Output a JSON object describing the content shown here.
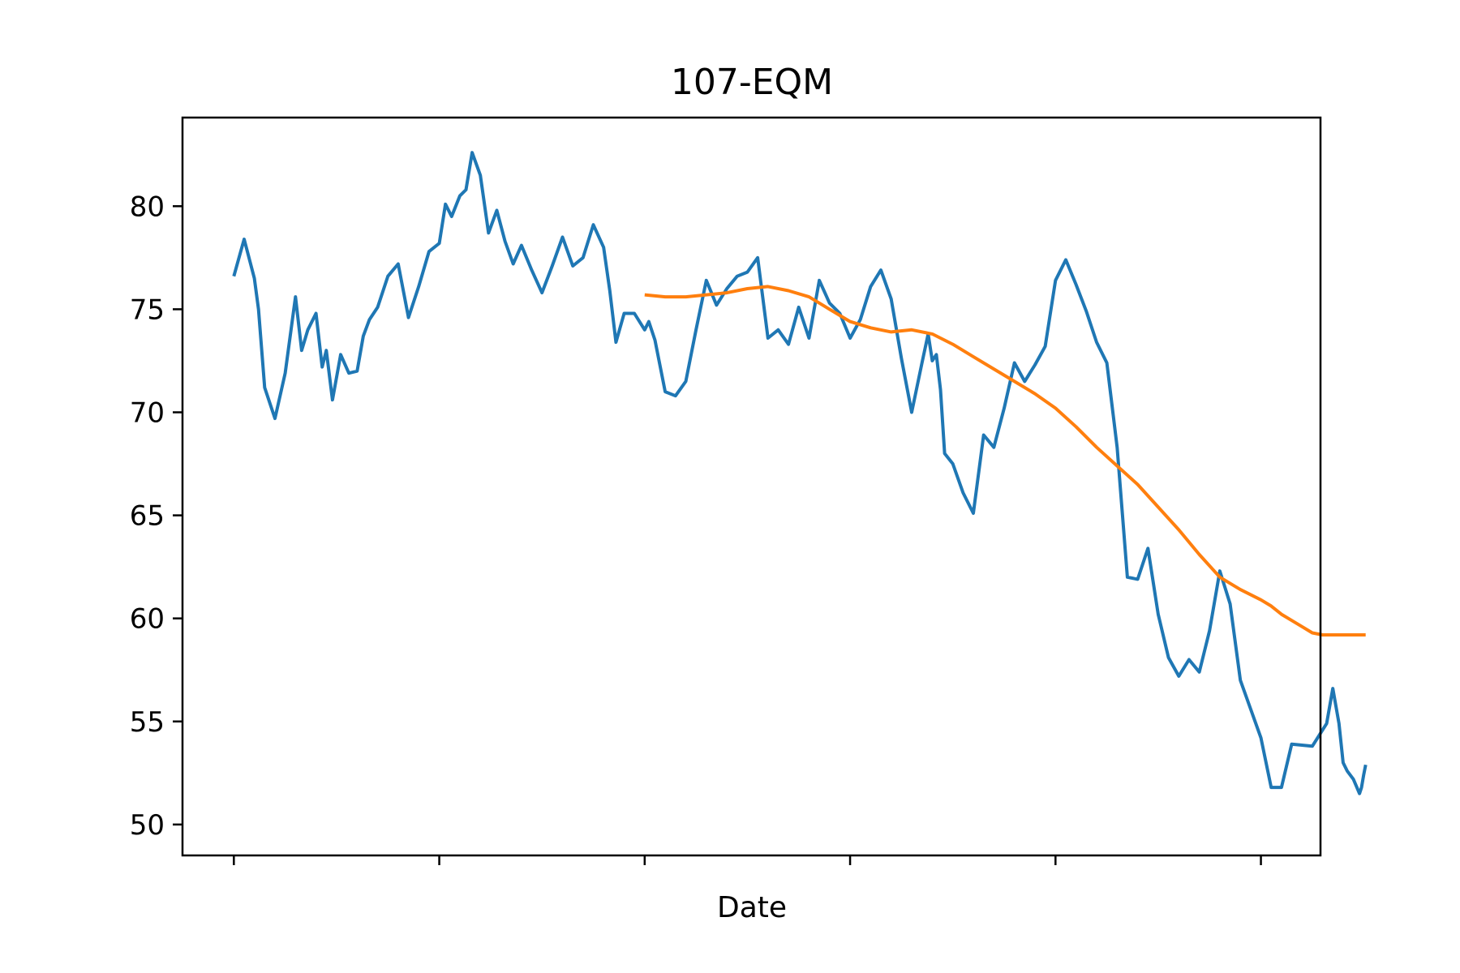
{
  "chart_data": {
    "type": "line",
    "title": "107-EQM",
    "xlabel": "Date",
    "ylabel": "",
    "xlim": [
      -25,
      529
    ],
    "ylim": [
      48.5,
      84.3
    ],
    "x_ticks": [
      0,
      100,
      200,
      300,
      400,
      500
    ],
    "x_tick_labels": [
      "",
      "",
      "",
      "",
      "",
      ""
    ],
    "y_ticks": [
      50,
      55,
      60,
      65,
      70,
      75,
      80
    ],
    "y_tick_labels": [
      "50",
      "55",
      "60",
      "65",
      "70",
      "75",
      "80"
    ],
    "grid": false,
    "legend": "none",
    "series": [
      {
        "color": "#1f77b4",
        "x": [
          0,
          5,
          10,
          12,
          15,
          20,
          25,
          30,
          33,
          36,
          40,
          43,
          45,
          48,
          52,
          56,
          60,
          63,
          66,
          70,
          75,
          80,
          85,
          90,
          95,
          100,
          103,
          106,
          110,
          113,
          116,
          120,
          124,
          128,
          132,
          136,
          140,
          145,
          150,
          155,
          160,
          165,
          170,
          175,
          180,
          183,
          186,
          190,
          195,
          200,
          202,
          205,
          210,
          215,
          220,
          225,
          230,
          235,
          240,
          245,
          250,
          255,
          260,
          265,
          270,
          275,
          280,
          285,
          290,
          295,
          300,
          305,
          310,
          315,
          320,
          325,
          330,
          335,
          338,
          340,
          342,
          344,
          346,
          350,
          355,
          360,
          365,
          370,
          375,
          380,
          385,
          390,
          395,
          400,
          405,
          410,
          415,
          420,
          425,
          430,
          435,
          440,
          445,
          450,
          455,
          460,
          465,
          470,
          475,
          480,
          485,
          490,
          495,
          500,
          505,
          510,
          515,
          525,
          532,
          535,
          538,
          540,
          542,
          545,
          548,
          549,
          550,
          551
        ],
        "y": [
          76.6,
          78.4,
          76.5,
          75.0,
          71.2,
          69.7,
          71.9,
          75.6,
          73.0,
          74.0,
          74.8,
          72.2,
          73.0,
          70.6,
          72.8,
          71.9,
          72.0,
          73.7,
          74.5,
          75.1,
          76.6,
          77.2,
          74.6,
          76.1,
          77.8,
          78.2,
          80.1,
          79.5,
          80.5,
          80.8,
          82.6,
          81.5,
          78.7,
          79.8,
          78.3,
          77.2,
          78.1,
          76.9,
          75.8,
          77.1,
          78.5,
          77.1,
          77.5,
          79.1,
          78.0,
          75.9,
          73.4,
          74.8,
          74.8,
          74.0,
          74.4,
          73.5,
          71.0,
          70.8,
          71.5,
          74.0,
          76.4,
          75.2,
          76.0,
          76.6,
          76.8,
          77.5,
          73.6,
          74.0,
          73.3,
          75.1,
          73.6,
          76.4,
          75.3,
          74.8,
          73.6,
          74.5,
          76.1,
          76.9,
          75.5,
          72.6,
          70.0,
          72.4,
          73.8,
          72.5,
          72.8,
          71.1,
          68.0,
          67.5,
          66.1,
          65.1,
          68.9,
          68.3,
          70.2,
          72.4,
          71.5,
          72.3,
          73.2,
          76.4,
          77.4,
          76.2,
          74.9,
          73.4,
          72.4,
          68.3,
          62.0,
          61.9,
          63.4,
          60.2,
          58.1,
          57.2,
          58.0,
          57.4,
          59.4,
          62.3,
          60.7,
          57.0,
          55.6,
          54.2,
          51.8,
          51.8,
          53.9,
          53.8,
          54.9,
          56.6,
          54.9,
          53.0,
          52.6,
          52.2,
          51.5,
          51.8,
          52.4,
          52.9
        ]
      },
      {
        "color": "#ff7f0e",
        "x": [
          200,
          210,
          220,
          230,
          240,
          250,
          260,
          270,
          280,
          290,
          300,
          310,
          320,
          330,
          340,
          350,
          360,
          370,
          380,
          390,
          400,
          410,
          420,
          430,
          440,
          450,
          460,
          470,
          480,
          490,
          500,
          505,
          510,
          515,
          520,
          525,
          530,
          535,
          540,
          545,
          551
        ],
        "y": [
          75.7,
          75.6,
          75.6,
          75.7,
          75.8,
          76.0,
          76.1,
          75.9,
          75.6,
          75.0,
          74.4,
          74.1,
          73.9,
          74.0,
          73.8,
          73.3,
          72.7,
          72.1,
          71.5,
          70.9,
          70.2,
          69.3,
          68.3,
          67.4,
          66.5,
          65.4,
          64.3,
          63.1,
          62.0,
          61.4,
          60.9,
          60.6,
          60.2,
          59.9,
          59.6,
          59.3,
          59.2,
          59.2,
          59.2,
          59.2,
          59.2
        ]
      }
    ]
  }
}
